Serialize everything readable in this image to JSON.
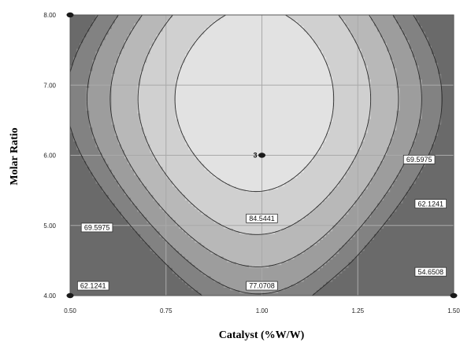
{
  "chart_data": {
    "type": "contour",
    "title": "",
    "xlabel": "Catalyst (%W/W)",
    "ylabel": "Molar Ratio",
    "xlim": [
      0.5,
      1.5
    ],
    "ylim": [
      4.0,
      8.0
    ],
    "x_ticks": [
      0.5,
      0.75,
      1.0,
      1.25,
      1.5
    ],
    "x_tick_labels": [
      "0.50",
      "0.75",
      "1.00",
      "1.25",
      "1.50"
    ],
    "y_ticks": [
      4.0,
      5.0,
      6.0,
      7.0,
      8.0
    ],
    "y_tick_labels": [
      "4.00",
      "5.00",
      "6.00",
      "7.00",
      "8.00"
    ],
    "grid": true,
    "contour_levels": [
      {
        "value": 54.6508,
        "label": "54.6508",
        "color": "#828282"
      },
      {
        "value": 62.1241,
        "label": "62.1241",
        "color": "#9d9d9d"
      },
      {
        "value": 69.5975,
        "label": "69.5975",
        "color": "#b8b8b8"
      },
      {
        "value": 77.0708,
        "label": "77.0708",
        "color": "#d0d0d0"
      },
      {
        "value": 84.5441,
        "label": "84.5441",
        "color": "#e2e2e2"
      }
    ],
    "below_lowest_color": "#6a6a6a",
    "above_highest_color": "#eeeeee",
    "contour_labels": [
      {
        "text": "62.1241",
        "x": 0.56,
        "y": 4.14
      },
      {
        "text": "69.5975",
        "x": 0.57,
        "y": 4.97
      },
      {
        "text": "77.0708",
        "x": 1.0,
        "y": 4.14
      },
      {
        "text": "84.5441",
        "x": 1.0,
        "y": 5.1
      },
      {
        "text": "69.5975",
        "x": 1.41,
        "y": 5.94
      },
      {
        "text": "62.1241",
        "x": 1.44,
        "y": 5.31
      },
      {
        "text": "54.6508",
        "x": 1.44,
        "y": 4.34
      }
    ],
    "design_points": [
      {
        "x": 0.5,
        "y": 8.0,
        "label": ""
      },
      {
        "x": 0.5,
        "y": 4.0,
        "label": ""
      },
      {
        "x": 1.5,
        "y": 4.0,
        "label": ""
      },
      {
        "x": 1.0,
        "y": 6.0,
        "label": "3"
      }
    ]
  }
}
